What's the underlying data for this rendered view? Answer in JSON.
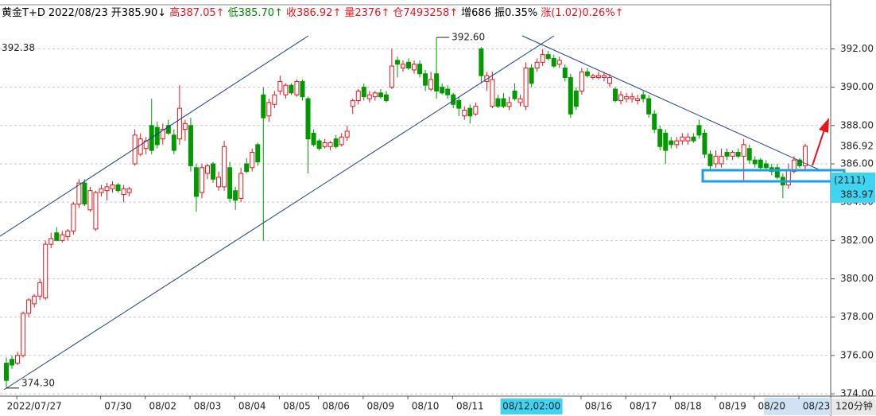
{
  "chart_data": {
    "type": "candlestick",
    "info_bar": [
      {
        "text": "黄金T+D",
        "color": "#000000"
      },
      {
        "text": "2022/08/23",
        "color": "#000000"
      },
      {
        "text": "开385.90↓",
        "color": "#000000"
      },
      {
        "text": "高387.05↑",
        "color": "#e8151c"
      },
      {
        "text": "低385.70↑",
        "color": "#008a00"
      },
      {
        "text": "收386.92↑",
        "color": "#e8151c"
      },
      {
        "text": "量2376↑",
        "color": "#e8151c"
      },
      {
        "text": "仓7493258↑",
        "color": "#e8151c"
      },
      {
        "text": "增686",
        "color": "#000000"
      },
      {
        "text": "振0.35%",
        "color": "#000000"
      },
      {
        "text": "涨(1.02)0.26%↑",
        "color": "#e8151c"
      }
    ],
    "up_color": "#e8151c",
    "down_color": "#009a00",
    "open": [
      375.6,
      375.8,
      375.6,
      376.0,
      378.2,
      378.7,
      379.1,
      379.0,
      381.8,
      382.4,
      382.0,
      382.2,
      382.5,
      383.9,
      385.0,
      383.6,
      382.6,
      384.5,
      384.6,
      384.7,
      384.9,
      384.4,
      384.5,
      386.0,
      386.5,
      386.8,
      388.0,
      387.9,
      387.3,
      388.0,
      387.5,
      387.3,
      387.8,
      388.0,
      385.8,
      384.5,
      385.5,
      386.0,
      384.8,
      384.8,
      385.8,
      384.6,
      384.2,
      386.0,
      385.8,
      387.0,
      389.6,
      388.5,
      389.1,
      389.8,
      389.6,
      390.1,
      389.6,
      390.3,
      389.4,
      387.6,
      387.2,
      386.9,
      386.9,
      387.3,
      387.0,
      387.4,
      389.0,
      389.3,
      390.0,
      389.4,
      389.5,
      389.7,
      389.6,
      390.0,
      391.4,
      391.0,
      391.3,
      390.9,
      391.2,
      390.7,
      389.9,
      390.7,
      390.0,
      389.9,
      389.6,
      389.3,
      388.5,
      388.9,
      388.6,
      392.0,
      390.3,
      389.0,
      389.4,
      389.4,
      389.0,
      389.8,
      389.2,
      389.0,
      391.0,
      391.0,
      391.3,
      391.7,
      391.5,
      391.2,
      391.0,
      390.5,
      389.8,
      389.8,
      390.8,
      390.5,
      390.5,
      390.5,
      390.2,
      389.9,
      389.3,
      389.4,
      389.4,
      389.3,
      389.6,
      389.4,
      388.6,
      387.8,
      387.6,
      387.2,
      387.0,
      387.2,
      387.2,
      387.4,
      388.0,
      387.6,
      386.5,
      386.0,
      386.0,
      386.6,
      386.4,
      386.6,
      386.4,
      386.8,
      386.2,
      386.2,
      386.0,
      385.8,
      385.8,
      385.3,
      384.9,
      385.6,
      386.2,
      385.9
    ],
    "high": [
      375.9,
      376.0,
      376.2,
      378.3,
      379.0,
      379.2,
      380.0,
      382.0,
      382.4,
      382.7,
      382.5,
      382.6,
      384.0,
      385.2,
      385.2,
      384.8,
      384.6,
      384.9,
      385.0,
      385.1,
      385.0,
      384.9,
      384.8,
      387.8,
      387.6,
      387.4,
      389.4,
      388.2,
      388.1,
      388.3,
      387.8,
      390.1,
      388.3,
      388.4,
      386.0,
      386.0,
      386.0,
      386.1,
      385.6,
      387.2,
      386.1,
      384.8,
      385.8,
      386.3,
      386.8,
      387.1,
      390.0,
      389.4,
      389.8,
      390.6,
      390.2,
      390.2,
      390.4,
      390.4,
      389.5,
      387.8,
      387.3,
      387.3,
      387.2,
      387.5,
      387.6,
      388.0,
      389.4,
      389.9,
      390.2,
      389.8,
      389.8,
      389.9,
      389.8,
      392.0,
      391.6,
      391.4,
      391.5,
      391.4,
      391.4,
      390.9,
      390.8,
      392.6,
      390.2,
      390.1,
      389.7,
      389.5,
      389.0,
      389.1,
      389.2,
      392.1,
      390.8,
      390.8,
      389.6,
      389.7,
      389.5,
      390.2,
      389.6,
      391.3,
      391.2,
      391.5,
      392.0,
      391.9,
      391.7,
      391.6,
      391.2,
      390.7,
      390.0,
      391.0,
      391.0,
      390.7,
      390.8,
      390.8,
      390.7,
      390.0,
      389.8,
      389.7,
      389.7,
      389.6,
      389.8,
      389.6,
      388.8,
      388.0,
      387.8,
      387.4,
      387.4,
      387.6,
      387.6,
      387.6,
      388.3,
      387.8,
      386.7,
      386.7,
      386.8,
      386.8,
      386.7,
      386.8,
      387.3,
      387.0,
      386.4,
      386.3,
      386.2,
      386.0,
      386.0,
      385.5,
      386.0,
      386.4,
      386.3,
      387.05
    ],
    "low": [
      374.3,
      375.3,
      375.5,
      375.9,
      378.0,
      378.5,
      378.9,
      378.9,
      381.6,
      382.0,
      381.9,
      382.0,
      382.3,
      383.7,
      383.8,
      383.5,
      382.5,
      384.3,
      384.1,
      384.5,
      384.5,
      384.0,
      384.3,
      385.9,
      386.4,
      386.5,
      386.5,
      386.8,
      387.0,
      387.5,
      386.5,
      387.0,
      387.2,
      385.6,
      383.5,
      384.2,
      385.2,
      385.0,
      384.6,
      384.6,
      384.0,
      383.6,
      384.0,
      385.5,
      385.6,
      385.9,
      382.0,
      388.2,
      388.9,
      389.6,
      389.4,
      389.6,
      389.5,
      389.3,
      385.5,
      386.9,
      386.7,
      386.8,
      386.7,
      386.8,
      386.9,
      387.2,
      388.6,
      389.1,
      389.3,
      389.2,
      389.3,
      389.4,
      389.2,
      389.9,
      390.5,
      390.8,
      390.9,
      390.7,
      390.5,
      389.8,
      389.8,
      389.4,
      389.6,
      389.4,
      388.9,
      388.5,
      388.3,
      388.1,
      388.5,
      390.2,
      389.8,
      388.9,
      388.9,
      388.9,
      388.8,
      389.3,
      389.0,
      388.8,
      390.0,
      390.8,
      391.1,
      391.4,
      391.0,
      391.0,
      390.3,
      388.4,
      388.8,
      389.6,
      390.5,
      390.4,
      390.4,
      390.3,
      390.0,
      389.2,
      389.1,
      389.2,
      389.2,
      389.1,
      389.2,
      388.4,
      387.6,
      386.7,
      386.0,
      386.8,
      386.8,
      387.0,
      387.0,
      387.1,
      387.3,
      386.3,
      385.7,
      385.8,
      385.8,
      386.2,
      386.2,
      386.3,
      385.1,
      386.0,
      385.8,
      385.6,
      385.6,
      385.4,
      385.2,
      384.2,
      384.7,
      385.5,
      385.8,
      385.7
    ],
    "close": [
      374.7,
      375.5,
      376.0,
      378.2,
      378.9,
      379.1,
      379.8,
      381.8,
      382.1,
      382.0,
      382.3,
      382.5,
      383.9,
      385.0,
      383.9,
      384.6,
      384.5,
      384.7,
      384.8,
      384.9,
      384.6,
      384.7,
      384.7,
      387.5,
      387.3,
      387.2,
      386.7,
      387.0,
      387.8,
      387.6,
      386.7,
      388.9,
      388.1,
      385.9,
      384.3,
      385.8,
      385.9,
      385.2,
      385.3,
      386.9,
      384.2,
      384.1,
      385.5,
      385.6,
      386.6,
      386.1,
      388.4,
      389.2,
      389.6,
      390.3,
      390.1,
      389.7,
      390.3,
      389.5,
      387.3,
      387.0,
      386.8,
      387.1,
      387.1,
      386.9,
      387.4,
      387.7,
      389.3,
      389.8,
      389.5,
      389.6,
      389.7,
      389.5,
      389.3,
      391.1,
      391.2,
      391.2,
      391.0,
      391.2,
      390.7,
      390.1,
      390.4,
      389.8,
      389.7,
      389.6,
      389.1,
      388.9,
      388.8,
      388.5,
      389.0,
      390.6,
      390.6,
      390.4,
      389.0,
      389.0,
      389.2,
      389.4,
      389.4,
      391.0,
      390.2,
      391.3,
      391.7,
      391.5,
      391.1,
      391.4,
      390.5,
      388.6,
      389.0,
      390.8,
      390.6,
      390.6,
      390.6,
      390.6,
      390.5,
      389.3,
      389.6,
      389.5,
      389.5,
      389.4,
      389.4,
      388.6,
      387.8,
      386.9,
      386.7,
      387.0,
      387.2,
      387.4,
      387.4,
      387.2,
      387.5,
      386.5,
      385.9,
      386.4,
      386.4,
      386.4,
      386.6,
      386.4,
      387.0,
      386.2,
      386.0,
      385.8,
      385.8,
      385.6,
      385.3,
      384.9,
      385.7,
      386.2,
      385.9,
      386.92
    ],
    "xlim": [
      -1.14,
      147.56
    ],
    "xticks": [
      {
        "value": 5,
        "label": "2022/07/27"
      },
      {
        "value": 20,
        "label": "07/30"
      },
      {
        "value": 28,
        "label": "08/02"
      },
      {
        "value": 36,
        "label": "08/03"
      },
      {
        "value": 44,
        "label": "08/04"
      },
      {
        "value": 52,
        "label": "08/05"
      },
      {
        "value": 59,
        "label": "08/06"
      },
      {
        "value": 67,
        "label": "08/09"
      },
      {
        "value": 75,
        "label": "08/10"
      },
      {
        "value": 83,
        "label": "08/11"
      },
      {
        "value": 106,
        "label": "08/16"
      },
      {
        "value": 114,
        "label": "08/17"
      },
      {
        "value": 122,
        "label": "08/18"
      },
      {
        "value": 130,
        "label": "08/19"
      },
      {
        "value": 137,
        "label": "08/20"
      },
      {
        "value": 145,
        "label": "08/23"
      }
    ],
    "ylim": [
      373.88,
      394.3
    ],
    "yticks": [
      {
        "value": 374,
        "label": "374.00"
      },
      {
        "value": 376,
        "label": "376.00"
      },
      {
        "value": 378,
        "label": "378.00"
      },
      {
        "value": 380,
        "label": "380.00"
      },
      {
        "value": 382,
        "label": "382.00"
      },
      {
        "value": 384,
        "label": "384.00"
      },
      {
        "value": 386,
        "label": "386.00"
      },
      {
        "value": 388,
        "label": "388.00"
      },
      {
        "value": 390,
        "label": "390.00"
      },
      {
        "value": 392,
        "label": "392.00"
      }
    ],
    "grid": true,
    "high_label": {
      "value": 392.6,
      "label": "392.60"
    },
    "low_label": {
      "value": 374.3,
      "label": "374.30"
    },
    "faded_label": {
      "value": 392.38,
      "label": "392.38"
    },
    "last_price": {
      "value": 386.92,
      "label": "386.92"
    },
    "crosshair": {
      "value": 383.97,
      "label": "383.97",
      "count": "(2111)",
      "x": 94,
      "x_label": "08/12,02:00"
    },
    "period": "120分钟"
  }
}
